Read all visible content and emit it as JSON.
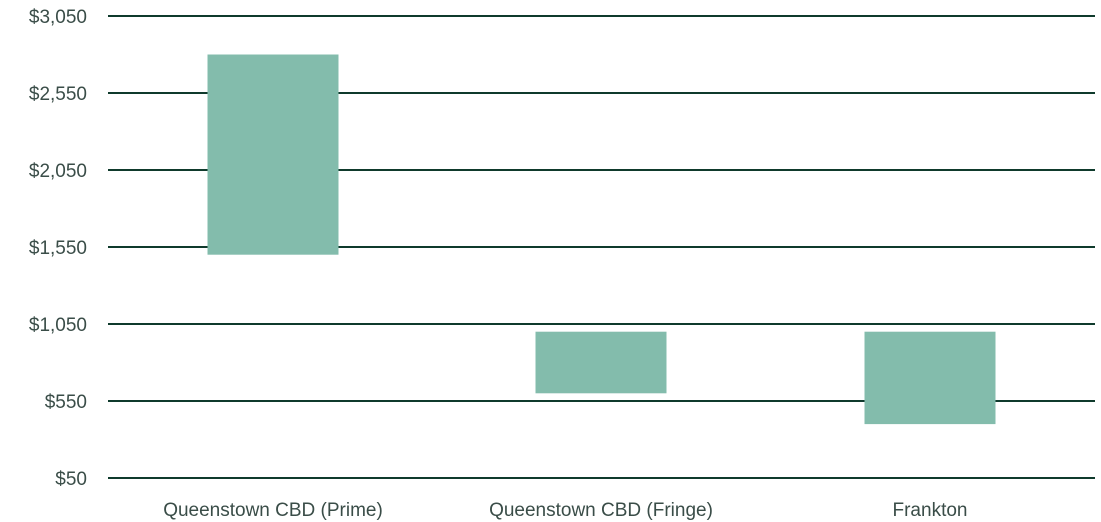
{
  "chart_data": {
    "type": "bar",
    "subtype": "floating-range",
    "categories": [
      "Queenstown CBD (Prime)",
      "Queenstown CBD (Fringe)",
      "Frankton"
    ],
    "ranges": [
      {
        "low": 1500,
        "high": 2800
      },
      {
        "low": 600,
        "high": 1000
      },
      {
        "low": 400,
        "high": 1000
      }
    ],
    "yticks": [
      "$3,050",
      "$2,550",
      "$2,050",
      "$1,550",
      "$1,050",
      "$550",
      "$50"
    ],
    "ytick_values": [
      3050,
      2550,
      2050,
      1550,
      1050,
      550,
      50
    ],
    "ylim": [
      50,
      3050
    ],
    "grid": true,
    "colors": {
      "bar": "#83bcac",
      "grid": "#0f3a2c",
      "text": "#3a4d48"
    }
  }
}
